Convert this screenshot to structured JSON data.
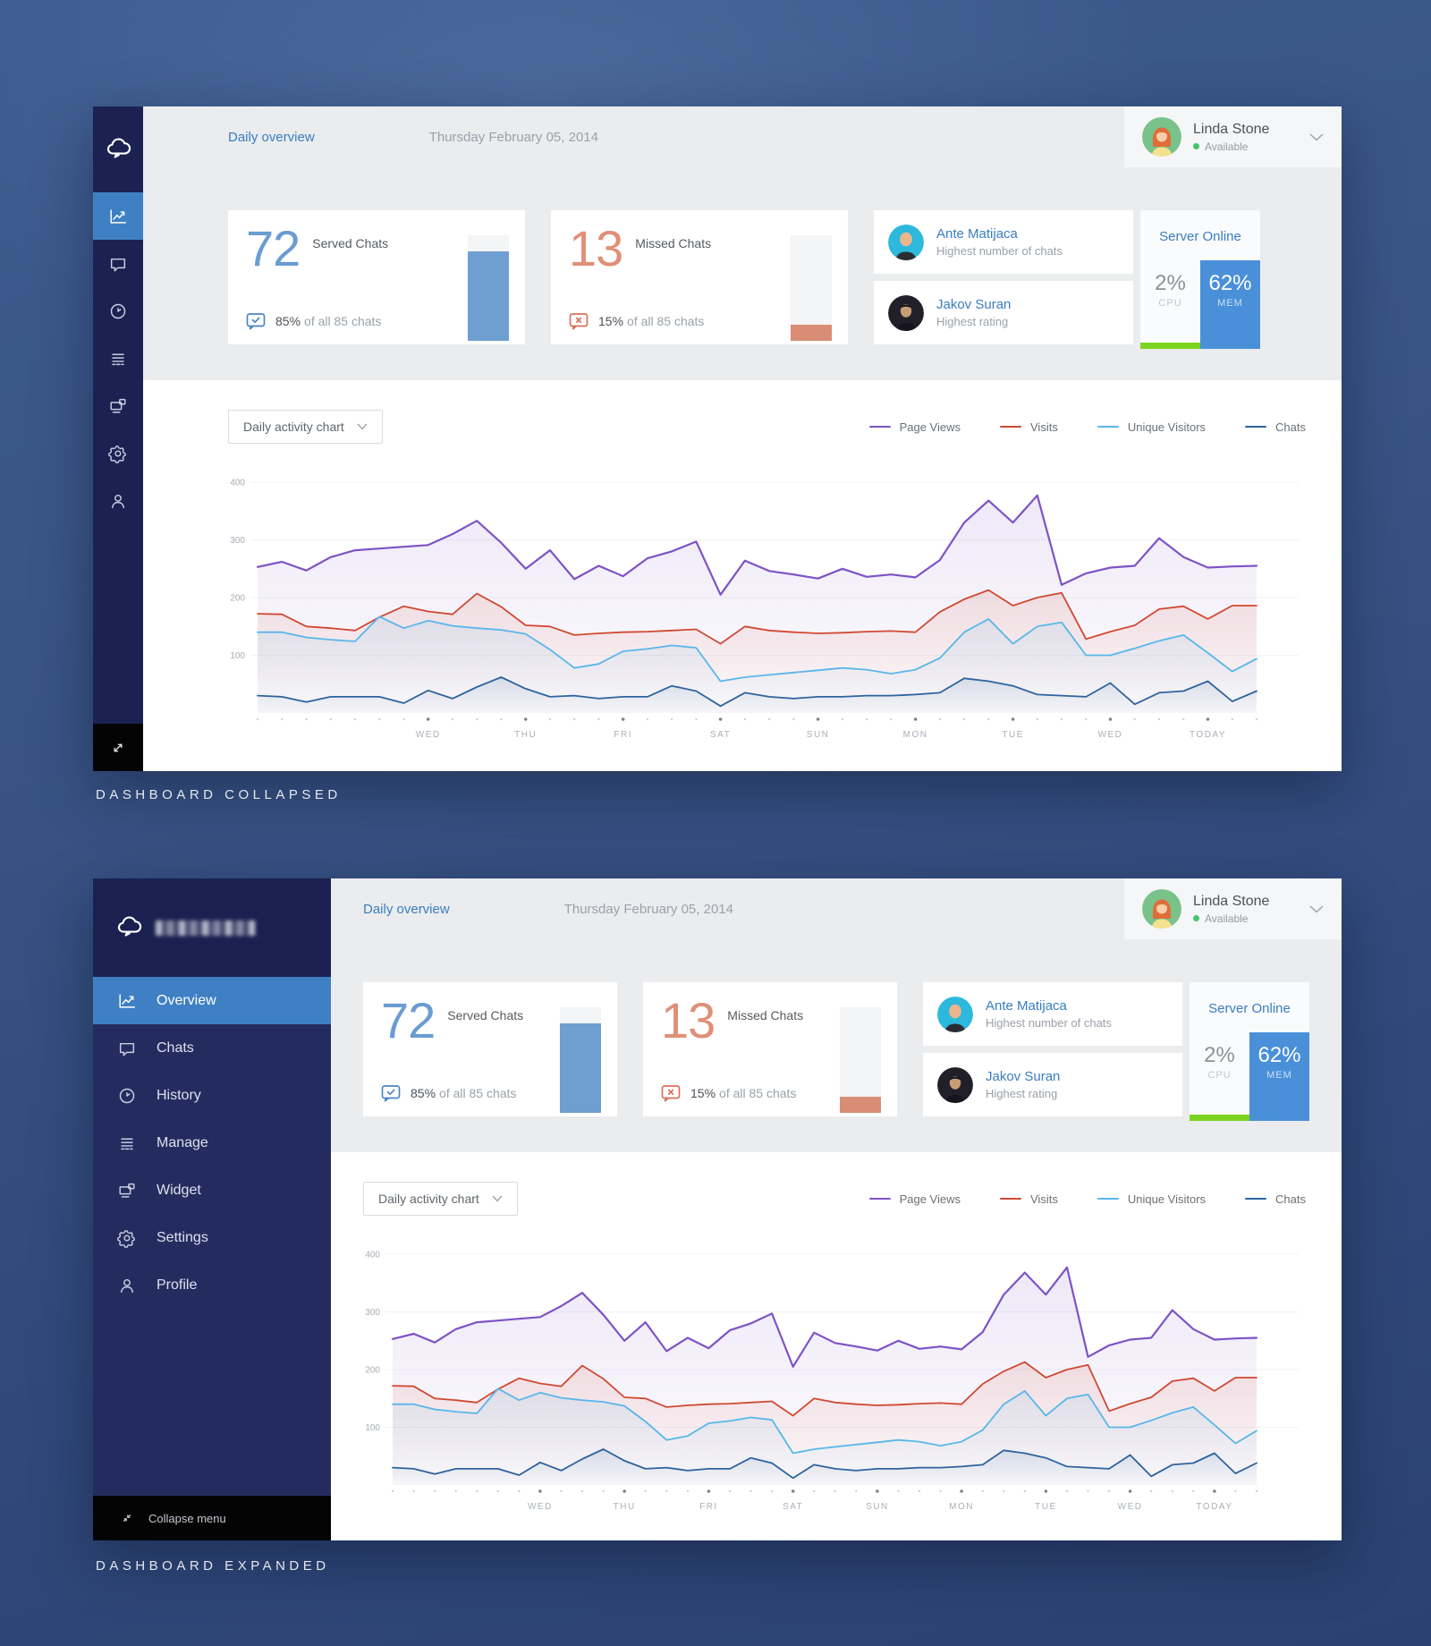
{
  "captions": {
    "collapsed": "DASHBOARD COLLAPSED",
    "expanded": "DASHBOARD EXPANDED"
  },
  "header": {
    "title": "Daily overview",
    "date": "Thursday February 05, 2014"
  },
  "user": {
    "name": "Linda Stone",
    "status": "Available",
    "status_color": "#45c46c"
  },
  "sidebar": {
    "items": [
      {
        "label": "Overview"
      },
      {
        "label": "Chats"
      },
      {
        "label": "History"
      },
      {
        "label": "Manage"
      },
      {
        "label": "Widget"
      },
      {
        "label": "Settings"
      },
      {
        "label": "Profile"
      }
    ],
    "active_index": 0,
    "collapse_label": "Collapse menu",
    "accent": "#3f80c4"
  },
  "stats": {
    "served": {
      "value": "72",
      "label": "Served Chats",
      "pct": "85%",
      "pct_suffix": "of all 85 chats",
      "bar_percent": 85,
      "color": "#6b9cd2",
      "bar_color": "#6f9fd0"
    },
    "missed": {
      "value": "13",
      "label": "Missed Chats",
      "pct": "15%",
      "pct_suffix": "of all 85 chats",
      "bar_percent": 15,
      "color": "#df9078",
      "bar_color": "#d98d75"
    }
  },
  "team": {
    "members": [
      {
        "name": "Ante Matijaca",
        "desc": "Highest number of chats"
      },
      {
        "name": "Jakov Suran",
        "desc": "Highest rating"
      }
    ]
  },
  "server": {
    "status": "Server Online",
    "cpu_value": "2%",
    "cpu_label": "CPU",
    "mem_value": "62%",
    "mem_label": "MEM",
    "mem_color": "#4a90d9",
    "bar_color": "#7bd321"
  },
  "chart_controls": {
    "dropdown_label": "Daily activity chart"
  },
  "chart_data": {
    "type": "area",
    "title": "Daily activity chart",
    "x_tick_labels": [
      "WED",
      "THU",
      "FRI",
      "SAT",
      "SUN",
      "MON",
      "TUE",
      "WED",
      "TODAY"
    ],
    "x_label_indices": [
      7,
      11,
      15,
      19,
      23,
      27,
      31,
      35,
      39
    ],
    "point_count": 42,
    "ylim": [
      0,
      430
    ],
    "y_ticks": [
      100,
      200,
      300,
      400
    ],
    "grid": true,
    "legend_position": "top-right",
    "series": [
      {
        "name": "Page Views",
        "color": "#7d53c6",
        "values": [
          253,
          262,
          247,
          270,
          282,
          285,
          288,
          291,
          310,
          333,
          295,
          250,
          282,
          232,
          255,
          237,
          268,
          280,
          297,
          205,
          264,
          246,
          240,
          233,
          250,
          236,
          240,
          235,
          265,
          330,
          368,
          330,
          377,
          222,
          242,
          252,
          255,
          303,
          270,
          252,
          254,
          255
        ]
      },
      {
        "name": "Visits",
        "color": "#cf4a32",
        "values": [
          172,
          171,
          150,
          147,
          143,
          166,
          185,
          176,
          171,
          207,
          184,
          152,
          150,
          135,
          138,
          140,
          141,
          143,
          145,
          120,
          150,
          143,
          140,
          138,
          139,
          141,
          142,
          140,
          175,
          197,
          213,
          186,
          200,
          208,
          128,
          141,
          152,
          180,
          185,
          163,
          186,
          186
        ]
      },
      {
        "name": "Unique Visitors",
        "color": "#58b7ea",
        "values": [
          140,
          140,
          131,
          127,
          124,
          167,
          147,
          160,
          151,
          147,
          144,
          137,
          110,
          78,
          85,
          107,
          111,
          117,
          113,
          55,
          62,
          66,
          70,
          74,
          78,
          75,
          68,
          75,
          95,
          140,
          163,
          120,
          150,
          157,
          100,
          100,
          112,
          125,
          135,
          104,
          72,
          94
        ]
      },
      {
        "name": "Chats",
        "color": "#2e639e",
        "values": [
          30,
          28,
          19,
          28,
          28,
          28,
          17,
          39,
          25,
          45,
          62,
          42,
          28,
          30,
          25,
          28,
          28,
          47,
          38,
          12,
          35,
          28,
          25,
          28,
          28,
          30,
          30,
          32,
          35,
          60,
          55,
          47,
          32,
          30,
          28,
          52,
          15,
          35,
          38,
          55,
          20,
          38
        ]
      }
    ]
  }
}
